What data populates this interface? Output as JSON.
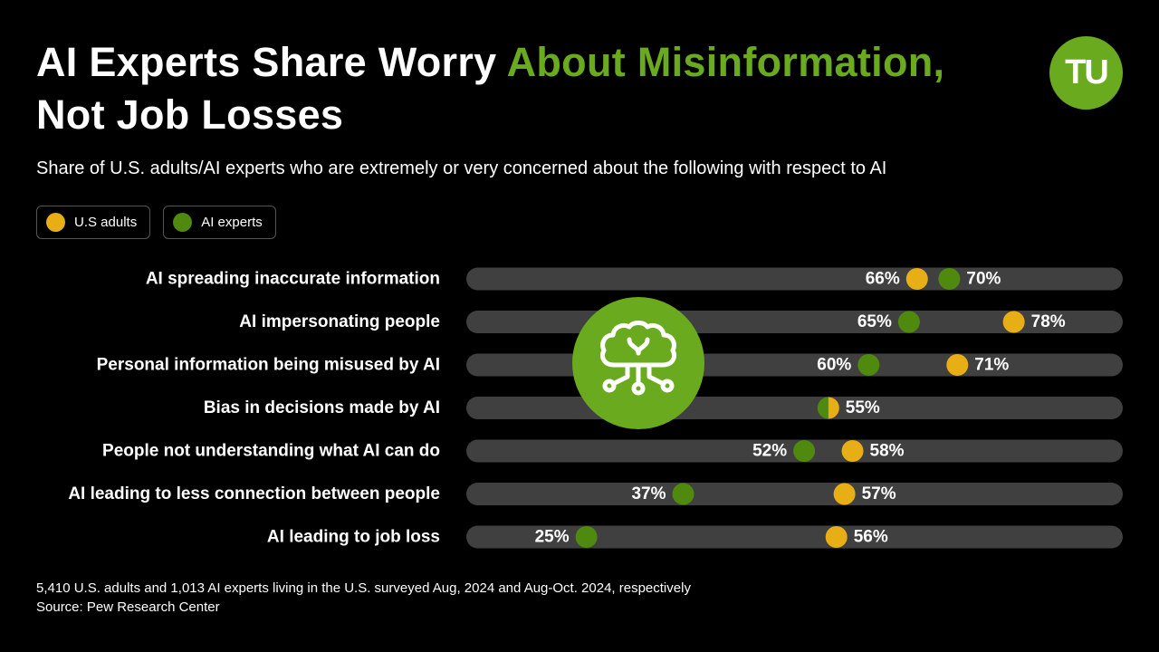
{
  "title": {
    "part1": "AI Experts Share Worry ",
    "accent": "About Misinformation,",
    "part2": "Not Job Losses"
  },
  "logo": {
    "text": "TU"
  },
  "subtitle": "Share of U.S. adults/AI experts who are extremely or very concerned about the following with respect to AI",
  "legend": [
    {
      "label": "U.S adults",
      "color": "#e8ae15"
    },
    {
      "label": "AI experts",
      "color": "#4f8a0f"
    }
  ],
  "chart_data": {
    "type": "dot",
    "title": "",
    "categories": [
      "AI spreading inaccurate information",
      "AI impersonating people",
      "Personal information being misused by AI",
      "Bias in decisions made by AI",
      "People not understanding what AI can do",
      "AI leading to less connection between people",
      "AI leading to job loss"
    ],
    "series": [
      {
        "name": "U.S adults",
        "color": "#e8ae15",
        "values": [
          66,
          78,
          71,
          55,
          58,
          57,
          56
        ]
      },
      {
        "name": "AI experts",
        "color": "#4f8a0f",
        "values": [
          70,
          65,
          60,
          55,
          52,
          37,
          25
        ]
      }
    ],
    "value_suffix": "%",
    "xlim": [
      0,
      100
    ]
  },
  "footnote": {
    "line1": "5,410 U.S. adults and 1,013 AI experts living in the U.S. surveyed Aug, 2024 and Aug-Oct. 2024, respectively",
    "line2": "Source: Pew Research Center"
  },
  "icons": {
    "badge": "brain-circuit-icon"
  }
}
